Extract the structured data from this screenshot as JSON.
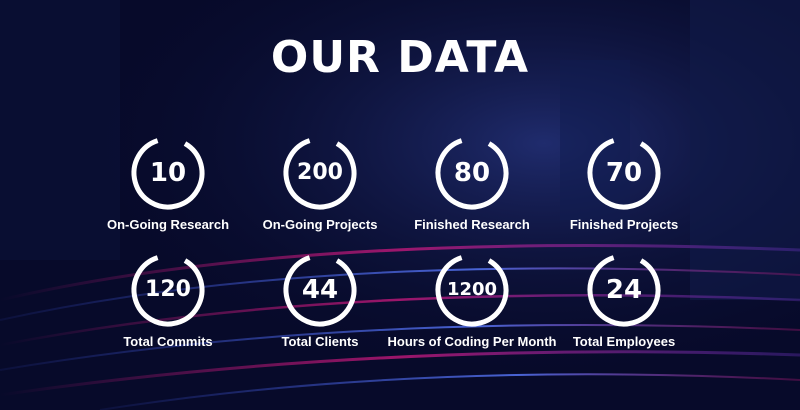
{
  "title": "OUR DATA",
  "stats": [
    {
      "value": "10",
      "label": "On-Going Research"
    },
    {
      "value": "200",
      "label": "On-Going Projects"
    },
    {
      "value": "80",
      "label": "Finished Research"
    },
    {
      "value": "70",
      "label": "Finished Projects"
    },
    {
      "value": "120",
      "label": "Total Commits"
    },
    {
      "value": "44",
      "label": "Total Clients"
    },
    {
      "value": "1200",
      "label": "Hours of Coding Per Month"
    },
    {
      "value": "24",
      "label": "Total Employees"
    }
  ],
  "colors": {
    "background": "#070a2a",
    "ring": "#ffffff",
    "text": "#ffffff",
    "accent_magenta": "#c2187a",
    "accent_blue": "#3a4fd8"
  }
}
